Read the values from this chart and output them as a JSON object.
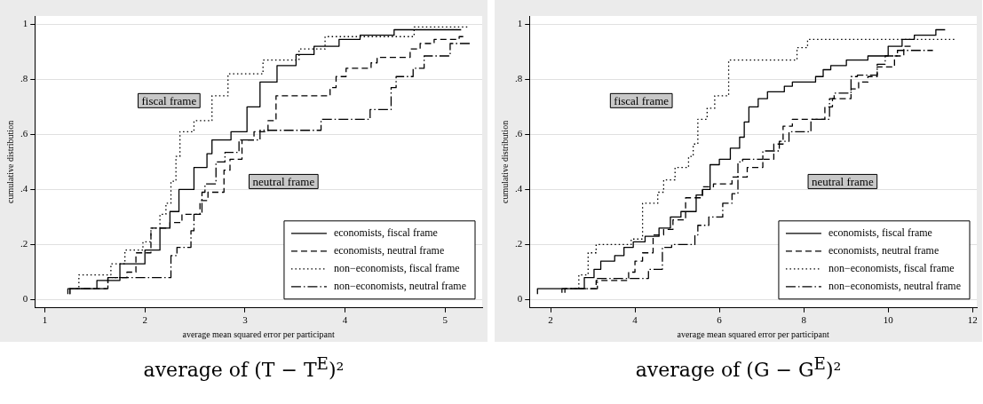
{
  "chart_data": [
    {
      "type": "step",
      "title": "average of (T − T$^{E}$)²",
      "xlabel": "average mean squared error per participant",
      "ylabel": "cumulative distribution",
      "xlim": [
        0.9,
        5.37
      ],
      "xticks": [
        1,
        2,
        3,
        4,
        5
      ],
      "ylim": [
        -0.03,
        1.03
      ],
      "yticks": [
        {
          "value": 0,
          "label": "0"
        },
        {
          "value": 0.2,
          "label": ".2"
        },
        {
          "value": 0.4,
          "label": ".4"
        },
        {
          "value": 0.6,
          "label": ".6"
        },
        {
          "value": 0.8,
          "label": ".8"
        },
        {
          "value": 1,
          "label": "1"
        }
      ],
      "grid": "y",
      "legend": "bottom right",
      "annotations": [
        "fiscal frame",
        "neutral frame"
      ],
      "series": [
        {
          "name": "economists, fiscal frame",
          "color": "#000000",
          "line_style": "solid",
          "x": [
            1.23,
            1.52,
            1.75,
            2.0,
            2.15,
            2.25,
            2.34,
            2.49,
            2.62,
            2.67,
            2.86,
            3.02,
            3.15,
            3.32,
            3.51,
            3.69,
            3.94,
            4.15,
            4.49,
            5.16
          ],
          "values": [
            0.02,
            0.04,
            0.07,
            0.13,
            0.18,
            0.26,
            0.32,
            0.4,
            0.48,
            0.53,
            0.58,
            0.61,
            0.7,
            0.79,
            0.85,
            0.89,
            0.92,
            0.945,
            0.96,
            0.98
          ]
        },
        {
          "name": "economists, neutral frame",
          "color": "#000000",
          "line_style": "dashed",
          "x": [
            1.25,
            1.63,
            1.82,
            1.91,
            2.06,
            2.25,
            2.37,
            2.55,
            2.63,
            2.79,
            2.85,
            2.97,
            3.09,
            3.23,
            3.31,
            3.85,
            3.91,
            4.01,
            4.26,
            4.32,
            4.65,
            4.75,
            4.89,
            5.14,
            5.2
          ],
          "values": [
            0.02,
            0.04,
            0.08,
            0.1,
            0.17,
            0.26,
            0.28,
            0.31,
            0.36,
            0.39,
            0.47,
            0.51,
            0.58,
            0.61,
            0.65,
            0.74,
            0.77,
            0.81,
            0.84,
            0.86,
            0.88,
            0.91,
            0.93,
            0.945,
            0.955
          ]
        },
        {
          "name": "non−economists, fiscal frame",
          "color": "#000000",
          "line_style": "dotted",
          "x": [
            1.34,
            1.66,
            1.8,
            1.98,
            2.06,
            2.15,
            2.21,
            2.26,
            2.31,
            2.35,
            2.49,
            2.67,
            2.83,
            3.18,
            3.54,
            3.8,
            4.69,
            5.23
          ],
          "values": [
            0.045,
            0.09,
            0.13,
            0.18,
            0.21,
            0.26,
            0.31,
            0.35,
            0.43,
            0.52,
            0.61,
            0.65,
            0.74,
            0.82,
            0.87,
            0.91,
            0.955,
            0.99
          ]
        },
        {
          "name": "non−economists, neutral frame",
          "color": "#000000",
          "line_style": "dashdot",
          "x": [
            1.25,
            1.63,
            2.26,
            2.32,
            2.46,
            2.49,
            2.57,
            2.6,
            2.71,
            2.8,
            2.94,
            3.15,
            3.76,
            4.25,
            4.46,
            4.51,
            4.68,
            4.79,
            5.05,
            5.25
          ],
          "values": [
            0.02,
            0.04,
            0.08,
            0.16,
            0.19,
            0.25,
            0.31,
            0.39,
            0.42,
            0.5,
            0.535,
            0.58,
            0.615,
            0.655,
            0.69,
            0.77,
            0.81,
            0.84,
            0.885,
            0.93
          ]
        }
      ]
    },
    {
      "type": "step",
      "title": "average of (G − G$^{E}$)²",
      "xlabel": "average mean squared error per participant",
      "ylabel": "cumulative distribution",
      "xlim": [
        1.5,
        12.1
      ],
      "xticks": [
        2,
        4,
        6,
        8,
        10,
        12
      ],
      "ylim": [
        -0.03,
        1.03
      ],
      "yticks": [
        {
          "value": 0,
          "label": "0"
        },
        {
          "value": 0.2,
          "label": ".2"
        },
        {
          "value": 0.4,
          "label": ".4"
        },
        {
          "value": 0.6,
          "label": ".6"
        },
        {
          "value": 0.8,
          "label": ".8"
        },
        {
          "value": 1,
          "label": "1"
        }
      ],
      "grid": "y",
      "legend": "bottom right",
      "annotations": [
        "fiscal frame",
        "neutral frame"
      ],
      "series": [
        {
          "name": "economists, fiscal frame",
          "color": "#000000",
          "line_style": "solid",
          "x": [
            1.69,
            2.8,
            3.03,
            3.19,
            3.52,
            3.74,
            3.96,
            4.24,
            4.57,
            4.84,
            5.09,
            5.45,
            5.6,
            5.78,
            6.0,
            6.26,
            6.48,
            6.59,
            6.7,
            6.92,
            7.14,
            7.54,
            7.73,
            8.28,
            8.46,
            8.64,
            9.01,
            9.52,
            10.0,
            10.33,
            10.62,
            11.13,
            11.35
          ],
          "values": [
            0.02,
            0.04,
            0.08,
            0.11,
            0.14,
            0.16,
            0.19,
            0.21,
            0.23,
            0.26,
            0.3,
            0.32,
            0.38,
            0.4,
            0.49,
            0.51,
            0.55,
            0.59,
            0.645,
            0.7,
            0.73,
            0.755,
            0.775,
            0.79,
            0.81,
            0.835,
            0.85,
            0.87,
            0.885,
            0.92,
            0.945,
            0.96,
            0.98
          ]
        },
        {
          "name": "economists, neutral frame",
          "color": "#000000",
          "line_style": "dashed",
          "x": [
            2.34,
            3.08,
            3.85,
            4.0,
            4.18,
            4.43,
            4.68,
            4.9,
            5.2,
            5.6,
            5.86,
            6.3,
            6.66,
            7.03,
            7.29,
            7.51,
            7.73,
            8.5,
            8.68,
            9.12,
            9.3,
            9.52,
            9.74,
            10.15,
            10.37,
            10.55
          ],
          "values": [
            0.025,
            0.04,
            0.07,
            0.1,
            0.14,
            0.17,
            0.235,
            0.255,
            0.29,
            0.37,
            0.41,
            0.42,
            0.445,
            0.48,
            0.51,
            0.565,
            0.63,
            0.655,
            0.7,
            0.73,
            0.765,
            0.79,
            0.81,
            0.845,
            0.885,
            0.92
          ]
        },
        {
          "name": "non−economists, fiscal frame",
          "color": "#000000",
          "line_style": "dotted",
          "x": [
            2.67,
            2.89,
            3.08,
            3.91,
            4.18,
            4.54,
            4.68,
            4.95,
            5.27,
            5.38,
            5.49,
            5.71,
            5.89,
            6.22,
            7.84,
            8.09,
            11.6
          ],
          "values": [
            0.04,
            0.09,
            0.17,
            0.2,
            0.22,
            0.35,
            0.39,
            0.435,
            0.48,
            0.52,
            0.565,
            0.655,
            0.695,
            0.74,
            0.87,
            0.915,
            0.945
          ]
        },
        {
          "name": "non−economists, neutral frame",
          "color": "#000000",
          "line_style": "dashdot",
          "x": [
            2.27,
            3.11,
            4.32,
            4.65,
            4.87,
            5.42,
            5.49,
            5.75,
            6.08,
            6.3,
            6.44,
            6.55,
            7.03,
            7.42,
            7.65,
            8.17,
            8.61,
            8.72,
            9.12,
            9.27,
            9.74,
            9.93,
            10.22,
            11.06
          ],
          "values": [
            0.025,
            0.04,
            0.077,
            0.11,
            0.19,
            0.2,
            0.235,
            0.27,
            0.3,
            0.35,
            0.385,
            0.5,
            0.51,
            0.54,
            0.575,
            0.61,
            0.655,
            0.73,
            0.75,
            0.81,
            0.815,
            0.855,
            0.885,
            0.905
          ]
        }
      ]
    }
  ]
}
